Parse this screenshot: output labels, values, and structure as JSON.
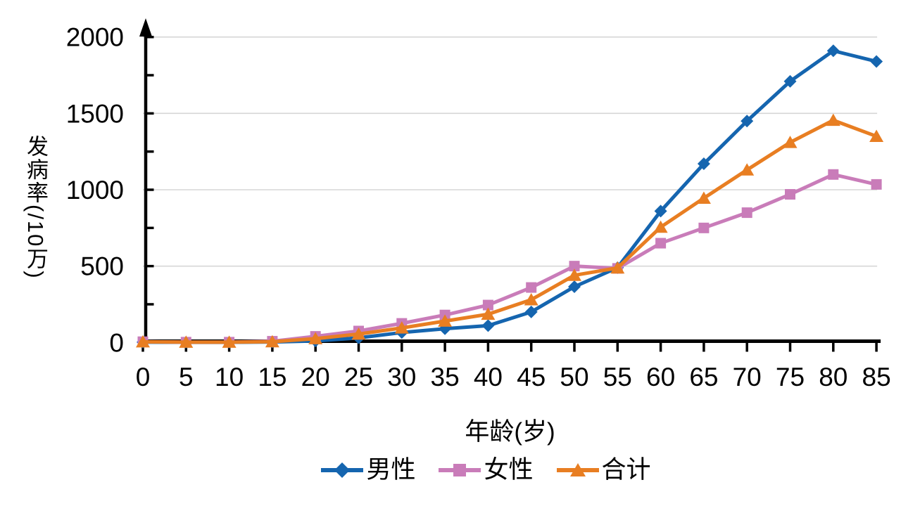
{
  "chart_data": {
    "type": "line",
    "title": "",
    "xlabel": "年龄(岁)",
    "ylabel": "发病率(/10万)",
    "x": [
      0,
      5,
      10,
      15,
      20,
      25,
      30,
      35,
      40,
      45,
      50,
      55,
      60,
      65,
      70,
      75,
      80,
      85
    ],
    "xtick_labels": [
      "0",
      "5",
      "10",
      "15",
      "20",
      "25",
      "30",
      "35",
      "40",
      "45",
      "50",
      "55",
      "60",
      "65",
      "70",
      "75",
      "80",
      "85"
    ],
    "ytick_labels": [
      "0",
      "500",
      "1000",
      "1500",
      "2000"
    ],
    "ytick_values": [
      0,
      500,
      1000,
      1500,
      2000
    ],
    "ytick_minor_step": 250,
    "ylim": [
      0,
      2000
    ],
    "grid": "horizontal-major-only",
    "legend_position": "bottom-center",
    "series": [
      {
        "key": "male",
        "name": "男性",
        "marker": "diamond",
        "color": "#1565AF",
        "values": [
          2,
          1,
          1,
          3,
          10,
          30,
          65,
          90,
          110,
          200,
          365,
          490,
          860,
          1170,
          1450,
          1710,
          1910,
          1840
        ]
      },
      {
        "key": "female",
        "name": "女性",
        "marker": "square",
        "color": "#C97CB9",
        "values": [
          5,
          2,
          2,
          8,
          40,
          75,
          125,
          180,
          245,
          360,
          500,
          485,
          650,
          750,
          850,
          970,
          1100,
          1035
        ]
      },
      {
        "key": "total",
        "name": "合计",
        "marker": "triangle",
        "color": "#E87E22",
        "values": [
          4,
          2,
          2,
          5,
          25,
          55,
          95,
          140,
          185,
          280,
          440,
          488,
          755,
          945,
          1130,
          1310,
          1455,
          1350
        ]
      }
    ],
    "colors": {
      "axis": "#000000",
      "gridline": "#D6D6D6",
      "background": "#FFFFFF"
    }
  }
}
